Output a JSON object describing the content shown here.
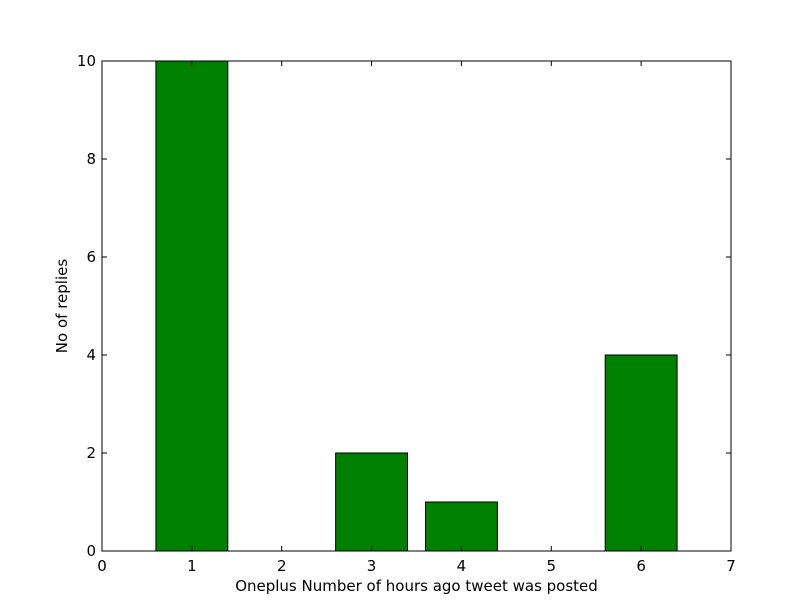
{
  "chart_data": {
    "type": "bar",
    "title": "",
    "xlabel": "Oneplus Number of hours ago tweet was posted",
    "ylabel": "No of replies",
    "x": [
      1,
      2,
      3,
      4,
      5,
      6
    ],
    "values": [
      10,
      0,
      2,
      1,
      0,
      4
    ],
    "bar_width": 0.8,
    "xlim": [
      0,
      7
    ],
    "ylim": [
      0,
      10
    ],
    "xticks": [
      "0",
      "1",
      "2",
      "3",
      "4",
      "5",
      "6",
      "7"
    ],
    "yticks": [
      "0",
      "2",
      "4",
      "6",
      "8",
      "10"
    ],
    "bar_color": "#008000",
    "edge_color": "#000000",
    "grid": false,
    "legend": "none"
  }
}
